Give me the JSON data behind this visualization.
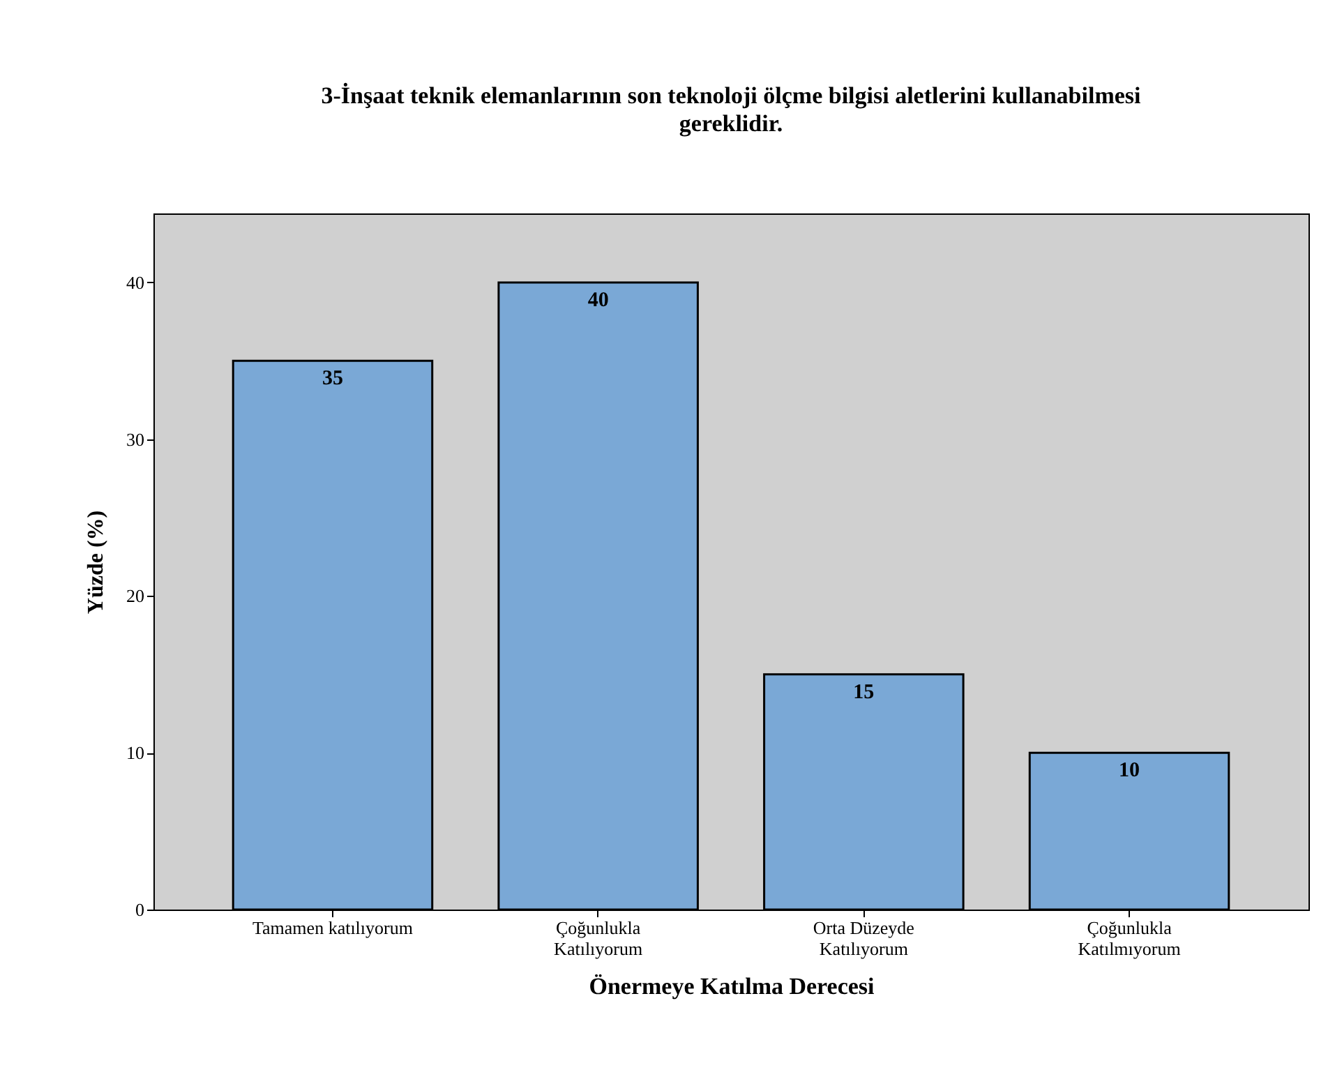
{
  "chart_data": {
    "type": "bar",
    "title": "3-İnşaat teknik elemanlarının son teknoloji ölçme bilgisi aletlerini kullanabilmesi gereklidir.",
    "xlabel": "Önermeye Katılma Derecesi",
    "ylabel": "Yüzde (%)",
    "categories": [
      "Tamamen katılıyorum",
      "Çoğunlukla Katılıyorum",
      "Orta Düzeyde Katılıyorum",
      "Çoğunlukla Katılmıyorum"
    ],
    "values": [
      35,
      40,
      15,
      10
    ],
    "color": "#7aa8d6",
    "ylim": [
      0,
      44.4
    ],
    "yticks": [
      0,
      10,
      20,
      30,
      40
    ],
    "data_labels": true,
    "grid": false
  }
}
